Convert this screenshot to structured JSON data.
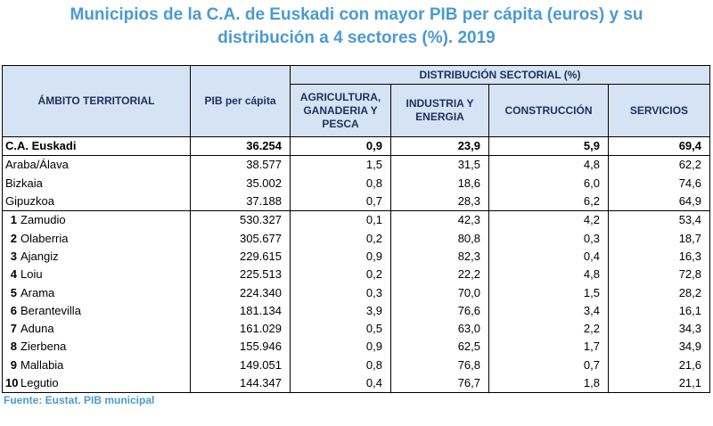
{
  "title": {
    "line1": "Municipios de la C.A. de Euskadi con mayor PIB per cápita (euros) y su",
    "line2": "distribución a 4 sectores (%). 2019"
  },
  "header": {
    "ambito": "ÁMBITO TERRITORIAL",
    "pib": "PIB per cápita",
    "distribucion": "DISTRIBUCIÓN SECTORIAL (%)",
    "agricultura": "AGRICULTURA, GANADERIA Y PESCA",
    "industria": "INDUSTRIA Y ENERGIA",
    "construccion": "CONSTRUCCIÓN",
    "servicios": "SERVICIOS"
  },
  "rows": [
    {
      "rank": "",
      "name": "C.A. Euskadi",
      "pib": "36.254",
      "agr": "0,9",
      "ind": "23,9",
      "con": "5,9",
      "ser": "69,4"
    },
    {
      "rank": "",
      "name": "Araba/Álava",
      "pib": "38.577",
      "agr": "1,5",
      "ind": "31,5",
      "con": "4,8",
      "ser": "62,2"
    },
    {
      "rank": "",
      "name": "Bizkaia",
      "pib": "35.002",
      "agr": "0,8",
      "ind": "18,6",
      "con": "6,0",
      "ser": "74,6"
    },
    {
      "rank": "",
      "name": "Gipuzkoa",
      "pib": "37.188",
      "agr": "0,7",
      "ind": "28,3",
      "con": "6,2",
      "ser": "64,9"
    },
    {
      "rank": "1",
      "name": "Zamudio",
      "pib": "530.327",
      "agr": "0,1",
      "ind": "42,3",
      "con": "4,2",
      "ser": "53,4"
    },
    {
      "rank": "2",
      "name": "Olaberria",
      "pib": "305.677",
      "agr": "0,2",
      "ind": "80,8",
      "con": "0,3",
      "ser": "18,7"
    },
    {
      "rank": "3",
      "name": "Ajangiz",
      "pib": "229.615",
      "agr": "0,9",
      "ind": "82,3",
      "con": "0,4",
      "ser": "16,3"
    },
    {
      "rank": "4",
      "name": "Loiu",
      "pib": "225.513",
      "agr": "0,2",
      "ind": "22,2",
      "con": "4,8",
      "ser": "72,8"
    },
    {
      "rank": "5",
      "name": "Arama",
      "pib": "224.340",
      "agr": "0,3",
      "ind": "70,0",
      "con": "1,5",
      "ser": "28,2"
    },
    {
      "rank": "6",
      "name": "Berantevilla",
      "pib": "181.134",
      "agr": "3,9",
      "ind": "76,6",
      "con": "3,4",
      "ser": "16,1"
    },
    {
      "rank": "7",
      "name": "Aduna",
      "pib": "161.029",
      "agr": "0,5",
      "ind": "63,0",
      "con": "2,2",
      "ser": "34,3"
    },
    {
      "rank": "8",
      "name": "Zierbena",
      "pib": "155.946",
      "agr": "0,9",
      "ind": "62,5",
      "con": "1,7",
      "ser": "34,9"
    },
    {
      "rank": "9",
      "name": "Mallabia",
      "pib": "149.051",
      "agr": "0,8",
      "ind": "76,8",
      "con": "0,7",
      "ser": "21,6"
    },
    {
      "rank": "10",
      "name": "Legutio",
      "pib": "144.347",
      "agr": "0,4",
      "ind": "76,7",
      "con": "1,8",
      "ser": "21,1"
    }
  ],
  "source": "Fuente: Eustat. PIB municipal",
  "colors": {
    "title": "#4a9ad4",
    "header_bg": "#d6e3f5",
    "header_text": "#1f2f5a"
  }
}
